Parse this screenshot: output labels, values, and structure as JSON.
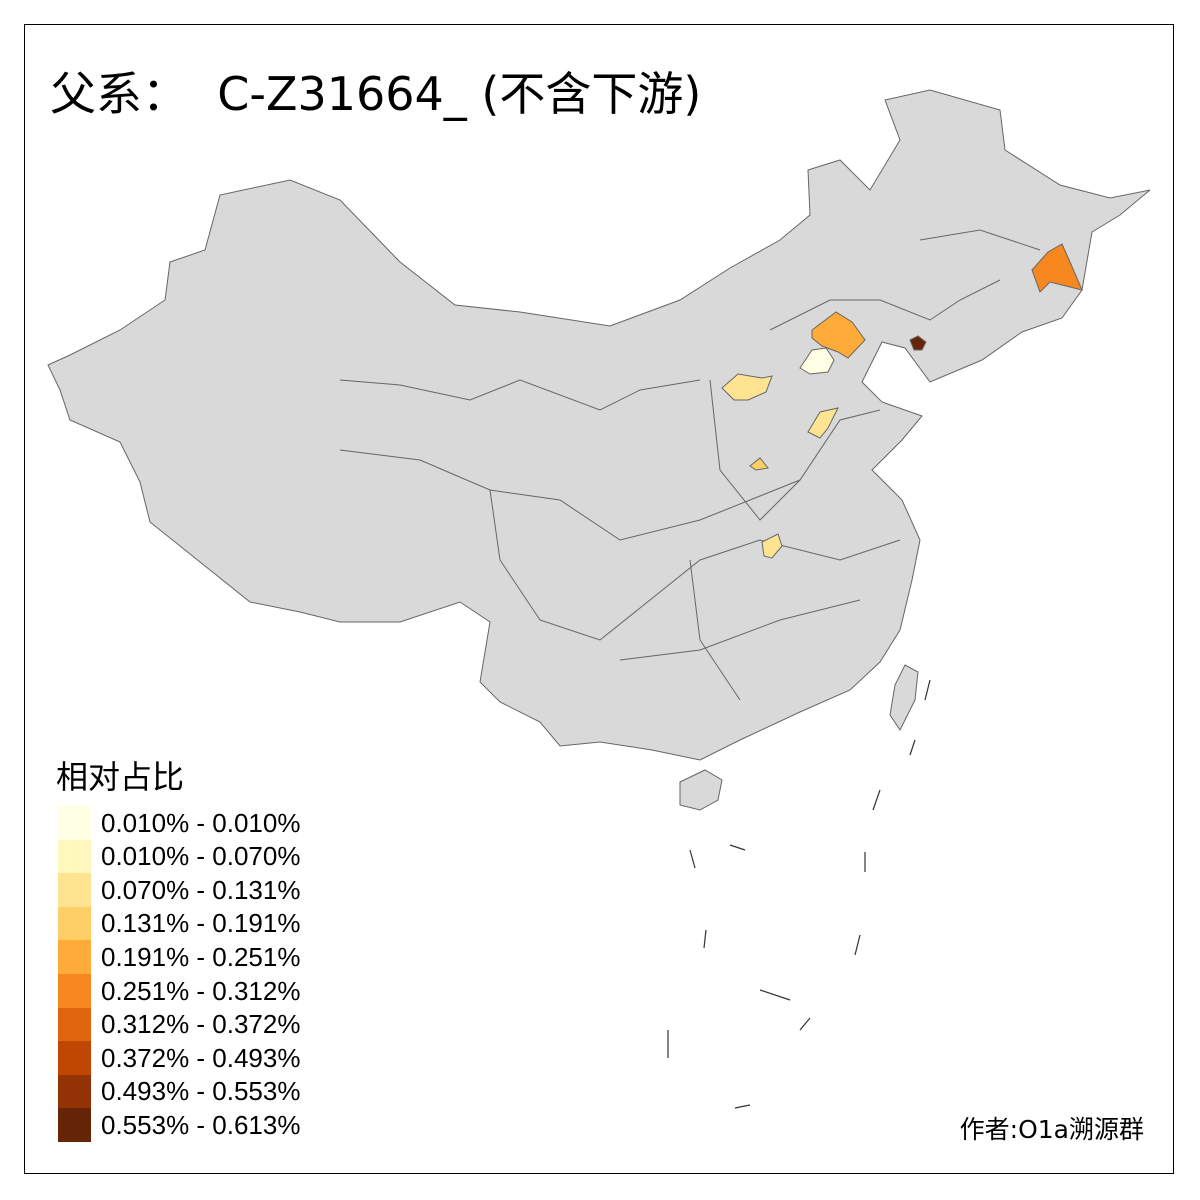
{
  "title": "父系：  C-Z31664_ (不含下游)",
  "legend": {
    "title": "相对占比",
    "items": [
      {
        "label": "0.010% - 0.010%",
        "color": "#FFFFE5"
      },
      {
        "label": "0.010% - 0.070%",
        "color": "#FFF7BC"
      },
      {
        "label": "0.070% - 0.131%",
        "color": "#FEE391"
      },
      {
        "label": "0.131% - 0.191%",
        "color": "#FECF66"
      },
      {
        "label": "0.191% - 0.251%",
        "color": "#FEAB3A"
      },
      {
        "label": "0.251% - 0.312%",
        "color": "#F6881F"
      },
      {
        "label": "0.312% - 0.372%",
        "color": "#E1640E"
      },
      {
        "label": "0.372% - 0.493%",
        "color": "#C04702"
      },
      {
        "label": "0.493% - 0.553%",
        "color": "#933204"
      },
      {
        "label": "0.553% - 0.613%",
        "color": "#662506"
      }
    ]
  },
  "credit": "作者:O1a溯源群",
  "colors": {
    "base_region": "#D9D9D9",
    "border": "#666666",
    "sea": "#FFFFFF"
  },
  "highlighted_regions": [
    {
      "area": "north of Beijing (Hebei, Chengde/Zhangjiakou area)",
      "color": "#FEAB3A"
    },
    {
      "area": "Beijing",
      "color": "#FFFFE5"
    },
    {
      "area": "northern Shanxi",
      "color": "#FEE391"
    },
    {
      "area": "central Hebei",
      "color": "#FEE391"
    },
    {
      "area": "southern Shanxi",
      "color": "#FECF66"
    },
    {
      "area": "southern Henan",
      "color": "#FEE391"
    },
    {
      "area": "western Liaoning (Jinzhou area)",
      "color": "#662506"
    },
    {
      "area": "southeastern Heilongjiang",
      "color": "#F6881F"
    }
  ]
}
